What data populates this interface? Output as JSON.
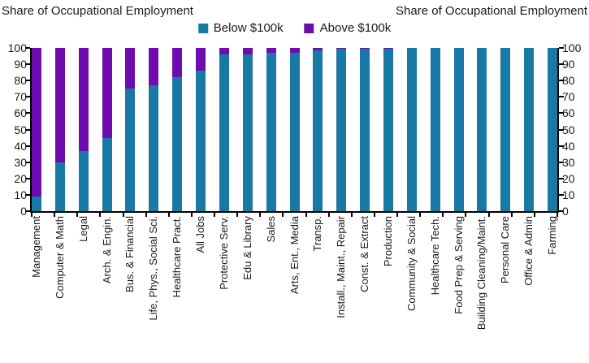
{
  "titles": {
    "left": "Share of Occupational Employment",
    "right": "Share of Occupational Employment"
  },
  "legend": {
    "items": [
      {
        "label": "Below $100k",
        "color": "#1879A4"
      },
      {
        "label": "Above $100k",
        "color": "#6F0CB0"
      }
    ]
  },
  "colors": {
    "below": "#1879A4",
    "above": "#6F0CB0",
    "axis": "#000000"
  },
  "chart_data": {
    "type": "bar",
    "stacked": true,
    "title": "Share of Occupational Employment",
    "xlabel": "",
    "ylabel": "Share of Occupational Employment",
    "ylim": [
      0,
      100
    ],
    "yticks": [
      0,
      10,
      20,
      30,
      40,
      50,
      60,
      70,
      80,
      90,
      100
    ],
    "grid": false,
    "legend_position": "top",
    "categories": [
      "Management",
      "Computer & Math",
      "Legal",
      "Arch. & Engin.",
      "Bus. & Financial",
      "Life, Phys., Social Sci.",
      "Healthcare Pract.",
      "All Jobs",
      "Protective Serv.",
      "Edu & Library",
      "Sales",
      "Arts, Ent., Media",
      "Transp.",
      "Install., Maint., Repair",
      "Const. & Extract",
      "Production",
      "Community & Social",
      "Healthcare Tech.",
      "Food Prep & Serving",
      "Building Cleaning/Maint.",
      "Personal Care",
      "Office & Admin",
      "Farming"
    ],
    "series": [
      {
        "name": "Below $100k",
        "color": "#1879A4",
        "values": [
          9,
          30,
          37,
          45,
          75,
          77,
          82,
          86,
          96,
          96,
          97,
          97,
          98.5,
          99.5,
          99.5,
          99.5,
          100,
          100,
          100,
          100,
          100,
          100,
          100
        ]
      },
      {
        "name": "Above $100k",
        "color": "#6F0CB0",
        "values": [
          91,
          70,
          63,
          55,
          25,
          23,
          18,
          14,
          4,
          4,
          3,
          3,
          1.5,
          0.5,
          0.5,
          0.5,
          0,
          0,
          0,
          0,
          0,
          0,
          0
        ]
      }
    ]
  }
}
